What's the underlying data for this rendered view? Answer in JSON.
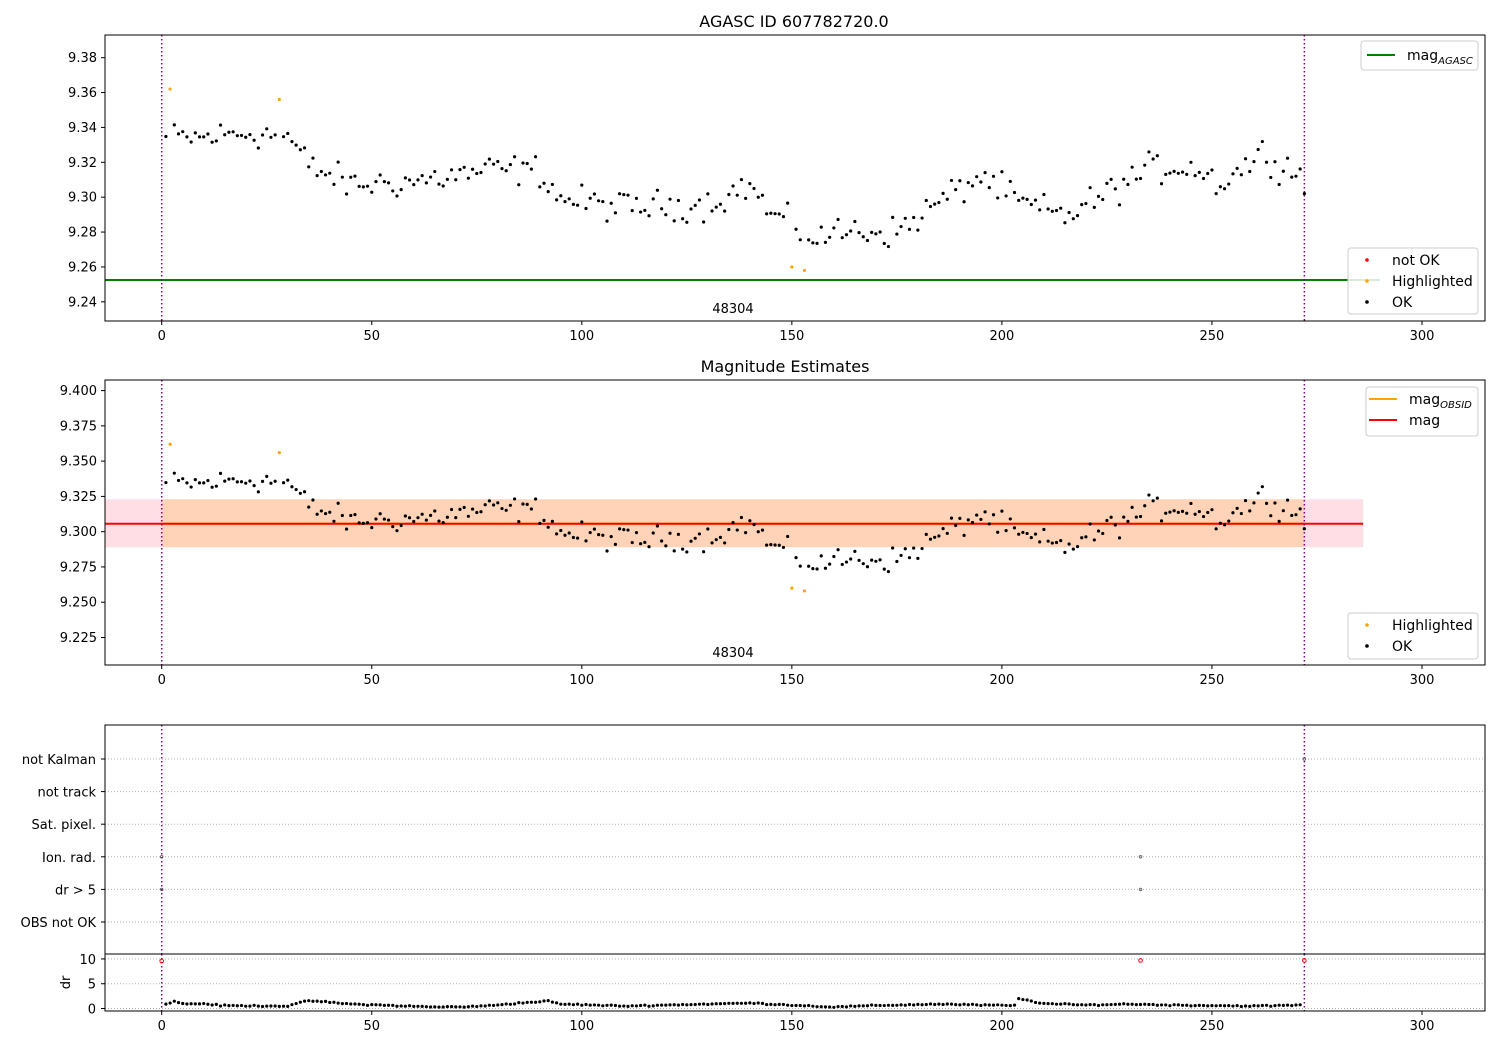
{
  "chart_data": [
    {
      "type": "scatter",
      "title": "AGASC ID 607782720.0",
      "xlabel": "",
      "ylabel": "",
      "xlim": [
        -13.5,
        315
      ],
      "ylim": [
        9.229,
        9.393
      ],
      "x_ticks": [
        0,
        50,
        100,
        150,
        200,
        250,
        300
      ],
      "y_ticks": [
        9.24,
        9.26,
        9.28,
        9.3,
        9.32,
        9.34,
        9.36,
        9.38
      ],
      "y_tick_labels": [
        "9.24",
        "9.26",
        "9.28",
        "9.30",
        "9.32",
        "9.34",
        "9.36",
        "9.38"
      ],
      "grid": false,
      "obs_boundaries": [
        0,
        272
      ],
      "obs_label": {
        "text": "48304",
        "x": 136
      },
      "hlines": [
        {
          "name": "mag_AGASC",
          "y": 9.2525,
          "color": "#008000",
          "xmax": 290
        }
      ],
      "highlighted_points": [
        {
          "x": 2,
          "y": 9.362
        },
        {
          "x": 28,
          "y": 9.356
        },
        {
          "x": 150,
          "y": 9.26
        },
        {
          "x": 153,
          "y": 9.258
        }
      ],
      "ok_points_generated": true,
      "legends": [
        {
          "position": "top-right",
          "entries": [
            {
              "label": "mag",
              "sub": "AGASC",
              "kind": "line",
              "color": "#008000"
            }
          ]
        },
        {
          "position": "bottom-right",
          "entries": [
            {
              "label": "not OK",
              "kind": "dot",
              "color": "#ff0000"
            },
            {
              "label": "Highlighted",
              "kind": "dot",
              "color": "#ffa500"
            },
            {
              "label": "OK",
              "kind": "dot",
              "color": "#000000"
            }
          ]
        }
      ]
    },
    {
      "type": "scatter",
      "title": "Magnitude Estimates",
      "xlabel": "",
      "ylabel": "",
      "xlim": [
        -13.5,
        315
      ],
      "ylim": [
        9.2055,
        9.4075
      ],
      "x_ticks": [
        0,
        50,
        100,
        150,
        200,
        250,
        300
      ],
      "y_ticks": [
        9.225,
        9.25,
        9.275,
        9.3,
        9.325,
        9.35,
        9.375,
        9.4
      ],
      "y_tick_labels": [
        "9.225",
        "9.250",
        "9.275",
        "9.300",
        "9.325",
        "9.350",
        "9.375",
        "9.400"
      ],
      "grid": false,
      "obs_boundaries": [
        0,
        272
      ],
      "obs_label": {
        "text": "48304",
        "x": 136
      },
      "mean_mag": 9.3056,
      "band_outer": [
        9.289,
        9.323
      ],
      "band_inner": [
        9.289,
        9.323
      ],
      "band_x": [
        0,
        272
      ],
      "band_outer_x": [
        -13.5,
        286
      ],
      "highlighted_points": [
        {
          "x": 2,
          "y": 9.362
        },
        {
          "x": 28,
          "y": 9.356
        },
        {
          "x": 150,
          "y": 9.26
        },
        {
          "x": 153,
          "y": 9.258
        }
      ],
      "legends": [
        {
          "position": "top-right",
          "entries": [
            {
              "label": "mag",
              "sub": "OBSID",
              "kind": "line",
              "color": "#ffa500"
            },
            {
              "label": "mag",
              "sub": "",
              "kind": "line",
              "color": "#ff0000"
            }
          ]
        },
        {
          "position": "bottom-right",
          "entries": [
            {
              "label": "Highlighted",
              "kind": "dot",
              "color": "#ffa500"
            },
            {
              "label": "OK",
              "kind": "dot",
              "color": "#000000"
            }
          ]
        }
      ]
    },
    {
      "type": "scatter",
      "title": "",
      "xlim": [
        -13.5,
        315
      ],
      "x_ticks": [
        0,
        50,
        100,
        150,
        200,
        250,
        300
      ],
      "flag_rows": [
        "not Kalman",
        "not track",
        "Sat. pixel.",
        "Ion. rad.",
        "dr > 5",
        "OBS not OK"
      ],
      "flag_points": [
        {
          "row": "Ion. rad.",
          "x": 0
        },
        {
          "row": "dr > 5",
          "x": 0
        },
        {
          "row": "Ion. rad.",
          "x": 233
        },
        {
          "row": "dr > 5",
          "x": 233
        },
        {
          "row": "not Kalman",
          "x": 272
        }
      ],
      "dr_ylabel": "dr",
      "dr_ylim": [
        -0.5,
        11
      ],
      "dr_y_ticks": [
        0,
        5,
        10
      ],
      "dr_outliers": [
        {
          "x": 0,
          "y": 9.6
        },
        {
          "x": 233,
          "y": 9.7
        },
        {
          "x": 272,
          "y": 9.7
        }
      ],
      "obs_boundaries": [
        0,
        272
      ]
    }
  ]
}
